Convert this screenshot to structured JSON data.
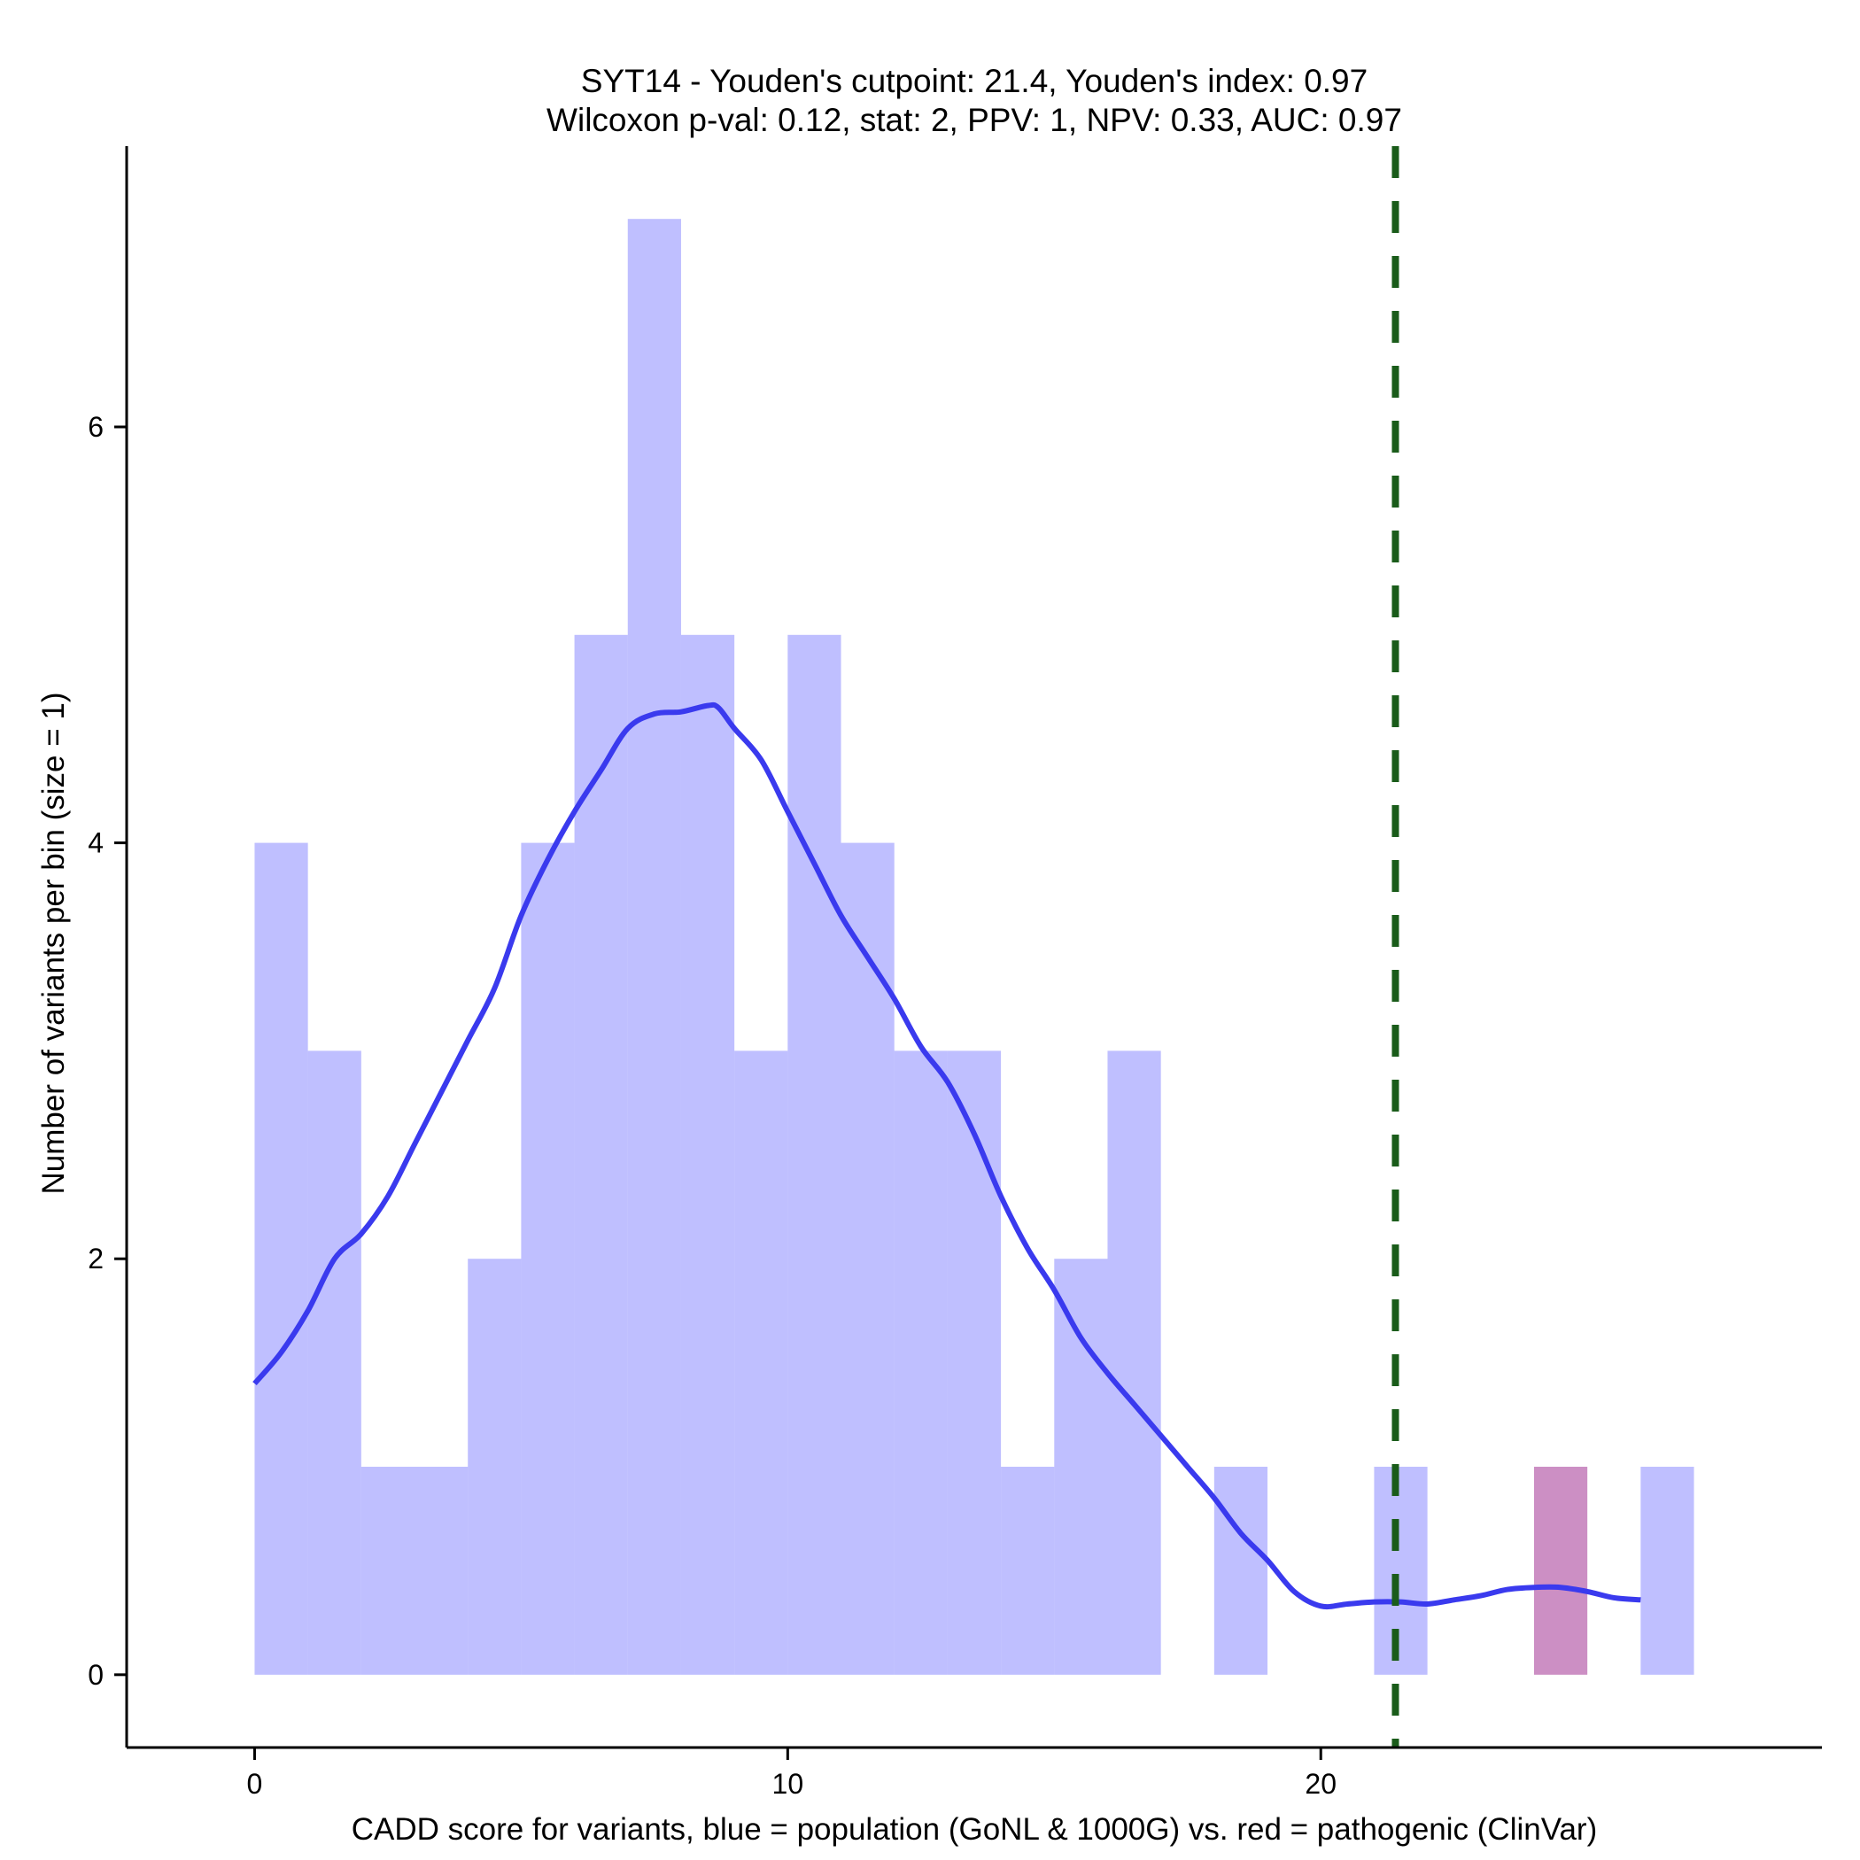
{
  "chart_data": {
    "type": "bar",
    "title": [
      "SYT14 - Youden's cutpoint: 21.4, Youden's index: 0.97",
      "Wilcoxon p-val: 0.12, stat: 2, PPV: 1, NPV: 0.33, AUC: 0.97"
    ],
    "xlabel": "CADD score for variants, blue = population (GoNL & 1000G) vs. red = pathogenic (ClinVar)",
    "ylabel": "Number of variants per bin (size = 1)",
    "xlim": [
      -2.4,
      29.4
    ],
    "ylim": [
      -0.35,
      7.35
    ],
    "xticks": [
      0,
      10,
      20
    ],
    "yticks": [
      0,
      2,
      4,
      6
    ],
    "bin_width": 1,
    "series": [
      {
        "name": "population (GoNL & 1000G)",
        "color": "#8080ff",
        "opacity": 0.5,
        "bins": [
          {
            "start": 0,
            "count": 4
          },
          {
            "start": 1,
            "count": 3
          },
          {
            "start": 2,
            "count": 1
          },
          {
            "start": 3,
            "count": 1
          },
          {
            "start": 4,
            "count": 2
          },
          {
            "start": 5,
            "count": 4
          },
          {
            "start": 6,
            "count": 5
          },
          {
            "start": 7,
            "count": 7
          },
          {
            "start": 8,
            "count": 5
          },
          {
            "start": 9,
            "count": 3
          },
          {
            "start": 10,
            "count": 5
          },
          {
            "start": 11,
            "count": 4
          },
          {
            "start": 12,
            "count": 3
          },
          {
            "start": 13,
            "count": 3
          },
          {
            "start": 14,
            "count": 1
          },
          {
            "start": 15,
            "count": 2
          },
          {
            "start": 16,
            "count": 3
          },
          {
            "start": 18,
            "count": 1
          },
          {
            "start": 21,
            "count": 1
          },
          {
            "start": 26,
            "count": 1
          }
        ]
      },
      {
        "name": "pathogenic (ClinVar)",
        "color": "#cc8fc4",
        "opacity": 1,
        "bins": [
          {
            "start": 24,
            "count": 1
          }
        ]
      }
    ],
    "density_curve": {
      "color": "#3a3aee",
      "x": [
        0,
        0.5,
        1,
        1.5,
        2,
        2.5,
        3,
        3.5,
        4,
        4.5,
        5,
        5.5,
        6,
        6.5,
        7,
        7.5,
        8,
        8.5,
        8.7,
        9,
        9.5,
        10,
        10.5,
        11,
        11.5,
        12,
        12.5,
        13,
        13.5,
        14,
        14.5,
        15,
        15.5,
        16,
        16.5,
        17,
        17.5,
        18,
        18.5,
        19,
        19.5,
        20,
        20.5,
        21,
        21.5,
        22,
        22.5,
        23,
        23.5,
        24,
        24.5,
        25,
        25.5,
        26
      ],
      "y": [
        1.4,
        1.55,
        1.75,
        2.0,
        2.12,
        2.3,
        2.55,
        2.8,
        3.05,
        3.3,
        3.65,
        3.92,
        4.15,
        4.35,
        4.55,
        4.62,
        4.63,
        4.66,
        4.65,
        4.55,
        4.4,
        4.15,
        3.9,
        3.65,
        3.45,
        3.25,
        3.02,
        2.85,
        2.6,
        2.3,
        2.05,
        1.85,
        1.62,
        1.45,
        1.3,
        1.15,
        1.0,
        0.85,
        0.68,
        0.55,
        0.4,
        0.33,
        0.34,
        0.35,
        0.35,
        0.34,
        0.36,
        0.38,
        0.41,
        0.42,
        0.42,
        0.4,
        0.37,
        0.36
      ]
    },
    "cutpoint": {
      "value": 21.4,
      "color": "#1a5c1a",
      "style": "dashed"
    }
  }
}
